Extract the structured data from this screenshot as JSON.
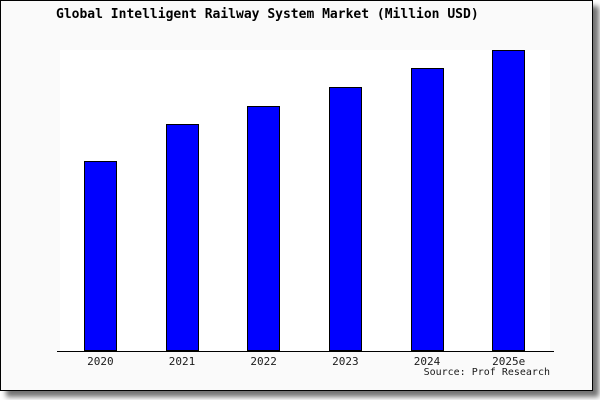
{
  "page": {
    "background": "#ffffff",
    "card_background": "#fafafa",
    "plot_background": "#ffffff",
    "frame_border_color": "#000000",
    "shadow_color": "#888888"
  },
  "chart_data": {
    "type": "bar",
    "title": "Global Intelligent Railway System Market (Million USD)",
    "categories": [
      "2020",
      "2021",
      "2022",
      "2023",
      "2024",
      "2025e"
    ],
    "values": [
      62.8,
      75.1,
      81.4,
      87.4,
      93.7,
      100.0
    ],
    "value_note": "no y-axis or value labels shown in chart; values are relative bar heights indexed to 2025e = 100",
    "xlabel": "",
    "ylabel": "",
    "ylim": [
      0,
      100
    ],
    "grid": false,
    "legend": false,
    "bar_color": "#0000ff",
    "bar_border_color": "#000000",
    "axis_color": "#000000"
  },
  "source": {
    "text": "Source: Prof Research"
  }
}
